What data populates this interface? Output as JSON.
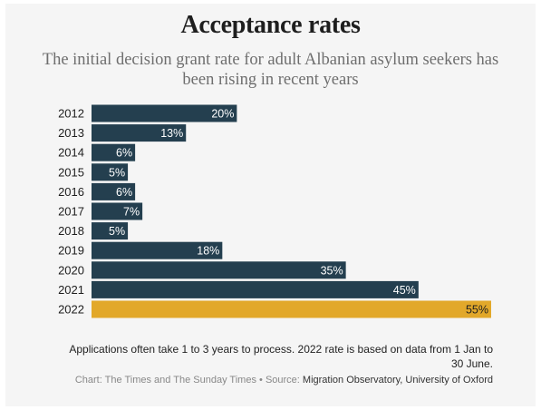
{
  "colors": {
    "bar": "#243f4f",
    "highlight": "#e2a82a",
    "label_on_bar": "#ffffff",
    "label_on_highlight": "#1e1e1e"
  },
  "chart_data": {
    "type": "bar",
    "orientation": "horizontal",
    "title": "Acceptance rates",
    "subtitle": "The initial decision grant rate for adult Albanian asylum seekers has been rising in recent years",
    "categories": [
      "2012",
      "2013",
      "2014",
      "2015",
      "2016",
      "2017",
      "2018",
      "2019",
      "2020",
      "2021",
      "2022"
    ],
    "values": [
      20,
      13,
      6,
      5,
      6,
      7,
      5,
      18,
      35,
      45,
      55
    ],
    "value_labels": [
      "20%",
      "13%",
      "6%",
      "5%",
      "6%",
      "7%",
      "5%",
      "18%",
      "35%",
      "45%",
      "55%"
    ],
    "highlight_category": "2022",
    "xlim": [
      0,
      55
    ],
    "grid": false,
    "legend": "none"
  },
  "footer": {
    "note": "Applications often take 1 to 3 years to process. 2022 rate is based on data from 1 Jan to 30 June.",
    "credit": "Chart: The Times and The Sunday Times",
    "separator": " • ",
    "source_label": "Source: ",
    "source_value": "Migration Observatory, University of Oxford"
  }
}
